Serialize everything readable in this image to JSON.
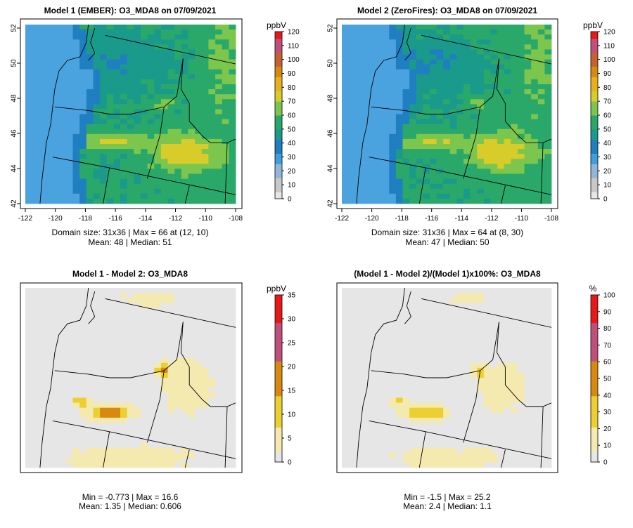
{
  "chart_data": [
    {
      "type": "heatmap",
      "title": "Model 1 (EMBER): O3_MDA8 on 07/09/2021",
      "x_ticks": [
        "-122",
        "-120",
        "-118",
        "-116",
        "-114",
        "-112",
        "-110",
        "-108"
      ],
      "y_ticks": [
        "42",
        "44",
        "46",
        "48",
        "50",
        "52"
      ],
      "xlim": [
        -122,
        -108
      ],
      "ylim": [
        42,
        52.2
      ],
      "colorbar": {
        "unit": "ppbV",
        "min": 0,
        "max": 120,
        "ticks": [
          "0",
          "10",
          "20",
          "30",
          "40",
          "50",
          "60",
          "70",
          "80",
          "90",
          "100",
          "110",
          "120"
        ]
      },
      "stats_line1": "Domain size: 31x36 | Max = 66 at (12, 10)",
      "stats_line2": "Mean: 48 |  Median: 51"
    },
    {
      "type": "heatmap",
      "title": "Model 2 (ZeroFires): O3_MDA8 on 07/09/2021",
      "x_ticks": [
        "-122",
        "-120",
        "-118",
        "-116",
        "-114",
        "-112",
        "-110",
        "-108"
      ],
      "y_ticks": [
        "42",
        "44",
        "46",
        "48",
        "50",
        "52"
      ],
      "xlim": [
        -122,
        -108
      ],
      "ylim": [
        42,
        52.2
      ],
      "colorbar": {
        "unit": "ppbV",
        "min": 0,
        "max": 120,
        "ticks": [
          "0",
          "10",
          "20",
          "30",
          "40",
          "50",
          "60",
          "70",
          "80",
          "90",
          "100",
          "110",
          "120"
        ]
      },
      "stats_line1": "Domain size: 31x36 | Max = 64 at (8, 30)",
      "stats_line2": "Mean: 47 |  Median: 50"
    },
    {
      "type": "heatmap",
      "title": "Model 1 - Model 2: O3_MDA8",
      "colorbar": {
        "unit": "ppbV",
        "min": 0,
        "max": 35,
        "ticks": [
          "0",
          "5",
          "10",
          "15",
          "20",
          "25",
          "30",
          "35"
        ]
      },
      "stats_line1": "Min = -0.773 | Max = 16.6",
      "stats_line2": "Mean: 1.35 |  Median: 0.606"
    },
    {
      "type": "heatmap",
      "title": "(Model 1 - Model 2)/(Model 1)x100%: O3_MDA8",
      "colorbar": {
        "unit": "%",
        "min": 0,
        "max": 100,
        "ticks": [
          "0",
          "10",
          "20",
          "30",
          "40",
          "50",
          "60",
          "70",
          "80",
          "90",
          "100"
        ]
      },
      "stats_line1": "Min = -1.5 | Max = 25.2",
      "stats_line2": "Mean: 2.4 |  Median: 1.1"
    }
  ],
  "colors": {
    "ocean": "#4aa3df",
    "ramp": [
      "#e6e6e6",
      "#c8c8c8",
      "#8fb8d8",
      "#3f9fdc",
      "#1f7fc0",
      "#1a9a8a",
      "#2aa86a",
      "#7cc64e",
      "#d8cc2a",
      "#e8b020",
      "#d88a10",
      "#c86030",
      "#c0507a",
      "#e81818"
    ],
    "diff_background": "#e6e6e6",
    "diff_low": "#f4eab0",
    "diff_mid": "#eccf30",
    "diff_high": "#d88a10"
  }
}
